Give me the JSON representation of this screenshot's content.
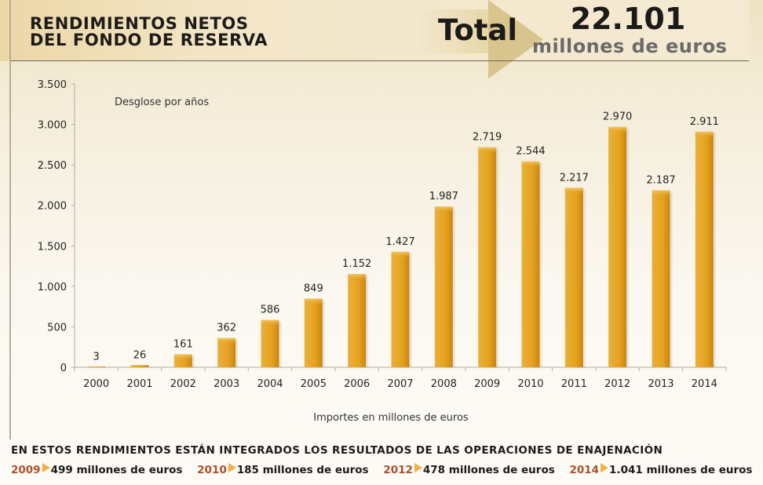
{
  "header": {
    "title_line1": "RENDIMIENTOS NETOS",
    "title_line2": "DEL FONDO DE RESERVA",
    "total_label": "Total",
    "total_value": "22.101",
    "total_unit": "millones de euros"
  },
  "chart_data": {
    "type": "bar",
    "title": "RENDIMIENTOS NETOS DEL FONDO DE RESERVA",
    "subtitle": "Desglose por años",
    "xlabel": "Importes en millones de euros",
    "ylabel": "",
    "categories": [
      "2000",
      "2001",
      "2002",
      "2003",
      "2004",
      "2005",
      "2006",
      "2007",
      "2008",
      "2009",
      "2010",
      "2011",
      "2012",
      "2013",
      "2014"
    ],
    "values": [
      3,
      26,
      161,
      362,
      586,
      849,
      1152,
      1427,
      1987,
      2719,
      2544,
      2217,
      2970,
      2187,
      2911
    ],
    "value_labels": [
      "3",
      "26",
      "161",
      "362",
      "586",
      "849",
      "1.152",
      "1.427",
      "1.987",
      "2.719",
      "2.544",
      "2.217",
      "2.970",
      "2.187",
      "2.911"
    ],
    "ylim": [
      0,
      3500
    ],
    "yticks": [
      0,
      500,
      1000,
      1500,
      2000,
      2500,
      3000,
      3500
    ],
    "ytick_labels": [
      "0",
      "500",
      "1.000",
      "1.500",
      "2.000",
      "2.500",
      "3.000",
      "3.500"
    ],
    "grid": false,
    "bar_color": "#e5a21f"
  },
  "footer": {
    "note": "EN ESTOS RENDIMIENTOS  ESTÁN INTEGRADOS LOS RESULTADOS DE LAS OPERACIONES DE ENAJENACIÓN",
    "items": [
      {
        "year": "2009",
        "amount": "499 millones de euros"
      },
      {
        "year": "2010",
        "amount": "185 millones de euros"
      },
      {
        "year": "2012",
        "amount": "478 millones de euros"
      },
      {
        "year": "2014",
        "amount": "1.041 millones de euros"
      }
    ]
  }
}
